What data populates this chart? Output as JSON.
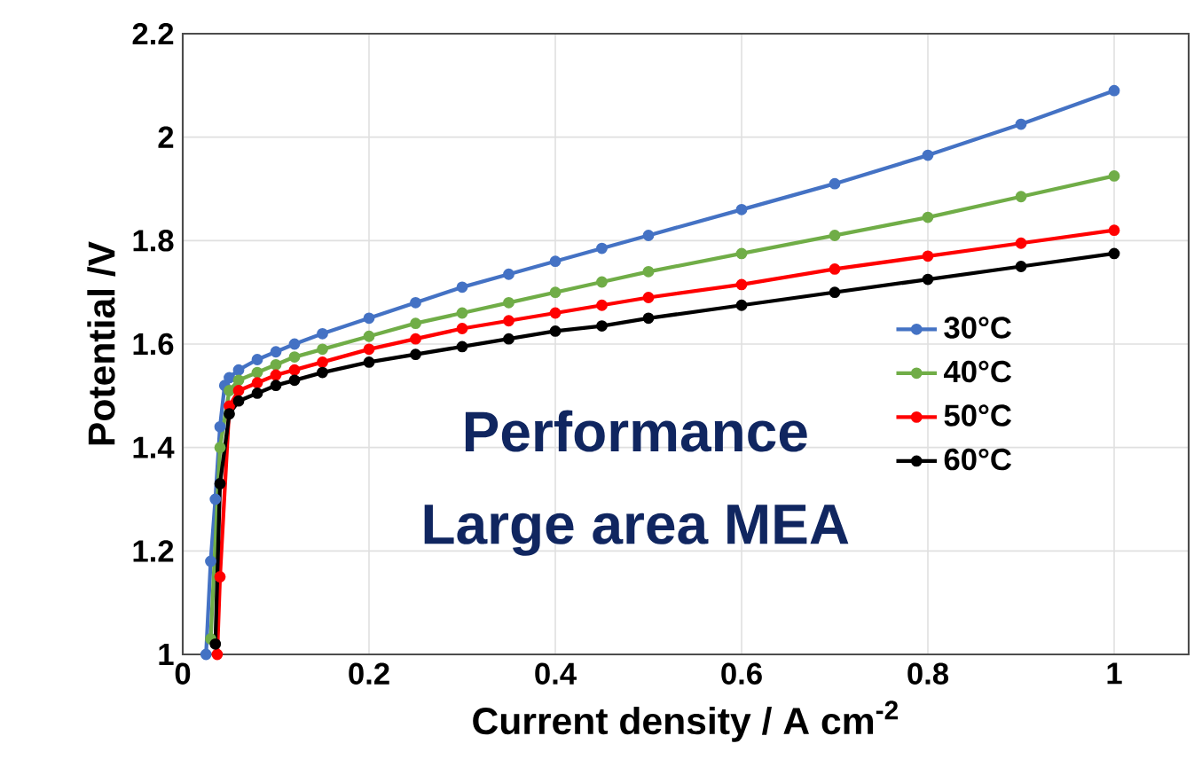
{
  "chart_data": {
    "type": "line",
    "xlabel": "Current density / A cm$^{-2}$",
    "ylabel": "Potential /V",
    "annotations": [
      "Performance",
      "Large area MEA"
    ],
    "xlim": [
      0,
      1.08
    ],
    "ylim": [
      1,
      2.2
    ],
    "xticks": [
      0,
      0.2,
      0.4,
      0.6,
      0.8,
      1
    ],
    "yticks": [
      1,
      1.2,
      1.4,
      1.6,
      1.8,
      2,
      2.2
    ],
    "grid": true,
    "legend": "right",
    "marker": "circle",
    "line_style": "solid",
    "series": [
      {
        "name": "30°C",
        "color": "#4472c4",
        "x": [
          0.025,
          0.03,
          0.035,
          0.04,
          0.045,
          0.05,
          0.06,
          0.08,
          0.1,
          0.12,
          0.15,
          0.2,
          0.25,
          0.3,
          0.35,
          0.4,
          0.45,
          0.5,
          0.6,
          0.7,
          0.8,
          0.9,
          1.0
        ],
        "values": [
          1.0,
          1.18,
          1.3,
          1.44,
          1.52,
          1.535,
          1.55,
          1.57,
          1.585,
          1.6,
          1.62,
          1.65,
          1.68,
          1.71,
          1.735,
          1.76,
          1.785,
          1.81,
          1.86,
          1.91,
          1.965,
          2.025,
          2.09
        ]
      },
      {
        "name": "40°C",
        "color": "#70ad47",
        "x": [
          0.03,
          0.04,
          0.05,
          0.06,
          0.08,
          0.1,
          0.12,
          0.15,
          0.2,
          0.25,
          0.3,
          0.35,
          0.4,
          0.45,
          0.5,
          0.6,
          0.7,
          0.8,
          0.9,
          1.0
        ],
        "values": [
          1.03,
          1.4,
          1.51,
          1.53,
          1.545,
          1.56,
          1.575,
          1.59,
          1.615,
          1.64,
          1.66,
          1.68,
          1.7,
          1.72,
          1.74,
          1.775,
          1.81,
          1.845,
          1.885,
          1.925
        ]
      },
      {
        "name": "50°C",
        "color": "#ff0000",
        "x": [
          0.037,
          0.04,
          0.05,
          0.06,
          0.08,
          0.1,
          0.12,
          0.15,
          0.2,
          0.25,
          0.3,
          0.35,
          0.4,
          0.45,
          0.5,
          0.6,
          0.7,
          0.8,
          0.9,
          1.0
        ],
        "values": [
          1.0,
          1.15,
          1.48,
          1.51,
          1.525,
          1.54,
          1.55,
          1.565,
          1.59,
          1.61,
          1.63,
          1.645,
          1.66,
          1.675,
          1.69,
          1.715,
          1.745,
          1.77,
          1.795,
          1.82
        ]
      },
      {
        "name": "60°C",
        "color": "#000000",
        "x": [
          0.035,
          0.04,
          0.05,
          0.06,
          0.08,
          0.1,
          0.12,
          0.15,
          0.2,
          0.25,
          0.3,
          0.35,
          0.4,
          0.45,
          0.5,
          0.6,
          0.7,
          0.8,
          0.9,
          1.0
        ],
        "values": [
          1.02,
          1.33,
          1.465,
          1.49,
          1.505,
          1.52,
          1.53,
          1.545,
          1.565,
          1.58,
          1.595,
          1.61,
          1.625,
          1.635,
          1.65,
          1.675,
          1.7,
          1.725,
          1.75,
          1.775
        ]
      }
    ]
  }
}
